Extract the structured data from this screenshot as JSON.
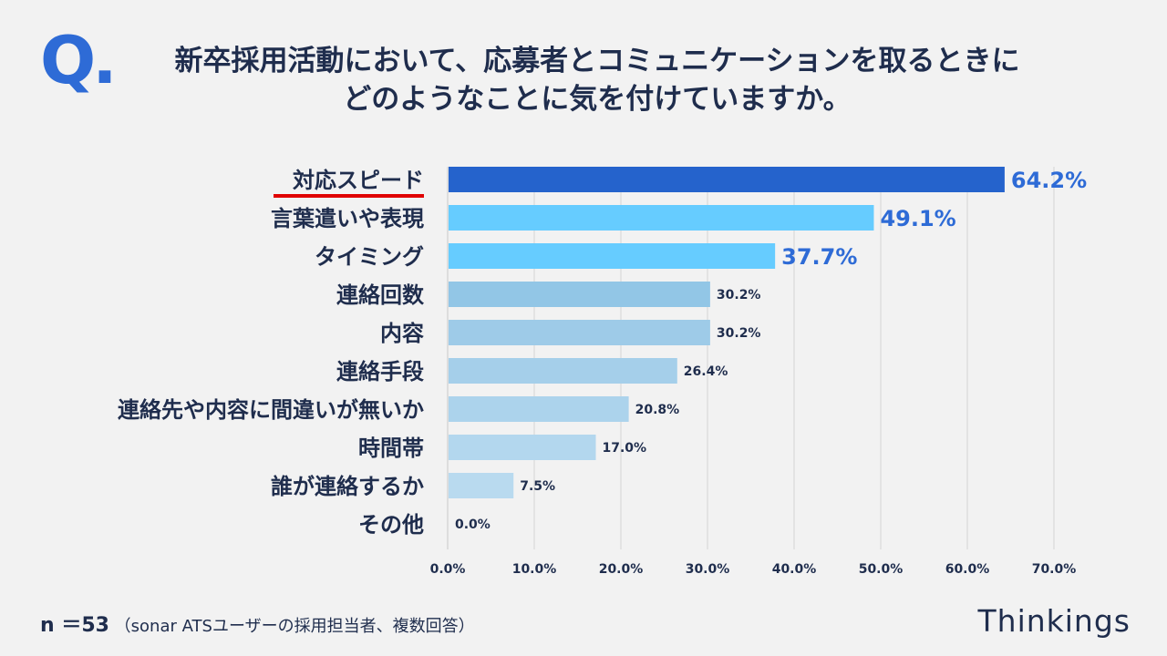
{
  "header": {
    "q_mark": "Q.",
    "question_line1": "新卒採用活動において、応募者とコミュニケーションを取るときに",
    "question_line2": "どのようなことに気を付けていますか。"
  },
  "chart_data": {
    "type": "bar",
    "orientation": "horizontal",
    "categories": [
      "対応スピード",
      "言葉遣いや表現",
      "タイミング",
      "連絡回数",
      "内容",
      "連絡手段",
      "連絡先や内容に間違いが無いか",
      "時間帯",
      "誰が連絡するか",
      "その他"
    ],
    "values": [
      64.2,
      49.1,
      37.7,
      30.2,
      30.2,
      26.4,
      20.8,
      17.0,
      7.5,
      0.0
    ],
    "value_labels": [
      "64.2%",
      "49.1%",
      "37.7%",
      "30.2%",
      "30.2%",
      "26.4%",
      "20.8%",
      "17.0%",
      "7.5%",
      "0.0%"
    ],
    "xlim": [
      0,
      70
    ],
    "x_ticks": [
      "0.0%",
      "10.0%",
      "20.0%",
      "30.0%",
      "40.0%",
      "50.0%",
      "60.0%",
      "70.0%"
    ],
    "grid": true,
    "highlighted_category": "対応スピード",
    "colors": [
      "#2563cc",
      "#66ccff",
      "#66ccff",
      "#92c6e6",
      "#9ecbe8",
      "#a5cfea",
      "#acd3ec",
      "#b3d7ee",
      "#b9daef",
      "#bfddf0"
    ],
    "label_colors": [
      "#2e6bd6",
      "#2e6bd6",
      "#2e6bd6",
      "#1f2d4d",
      "#1f2d4d",
      "#1f2d4d",
      "#1f2d4d",
      "#1f2d4d",
      "#1f2d4d",
      "#1f2d4d"
    ],
    "underline_color": "#e00000"
  },
  "footer": {
    "n_label": "n ＝53",
    "sample_note": "（sonar ATSユーザーの採用担当者、複数回答）",
    "brand": "Thinkings"
  }
}
